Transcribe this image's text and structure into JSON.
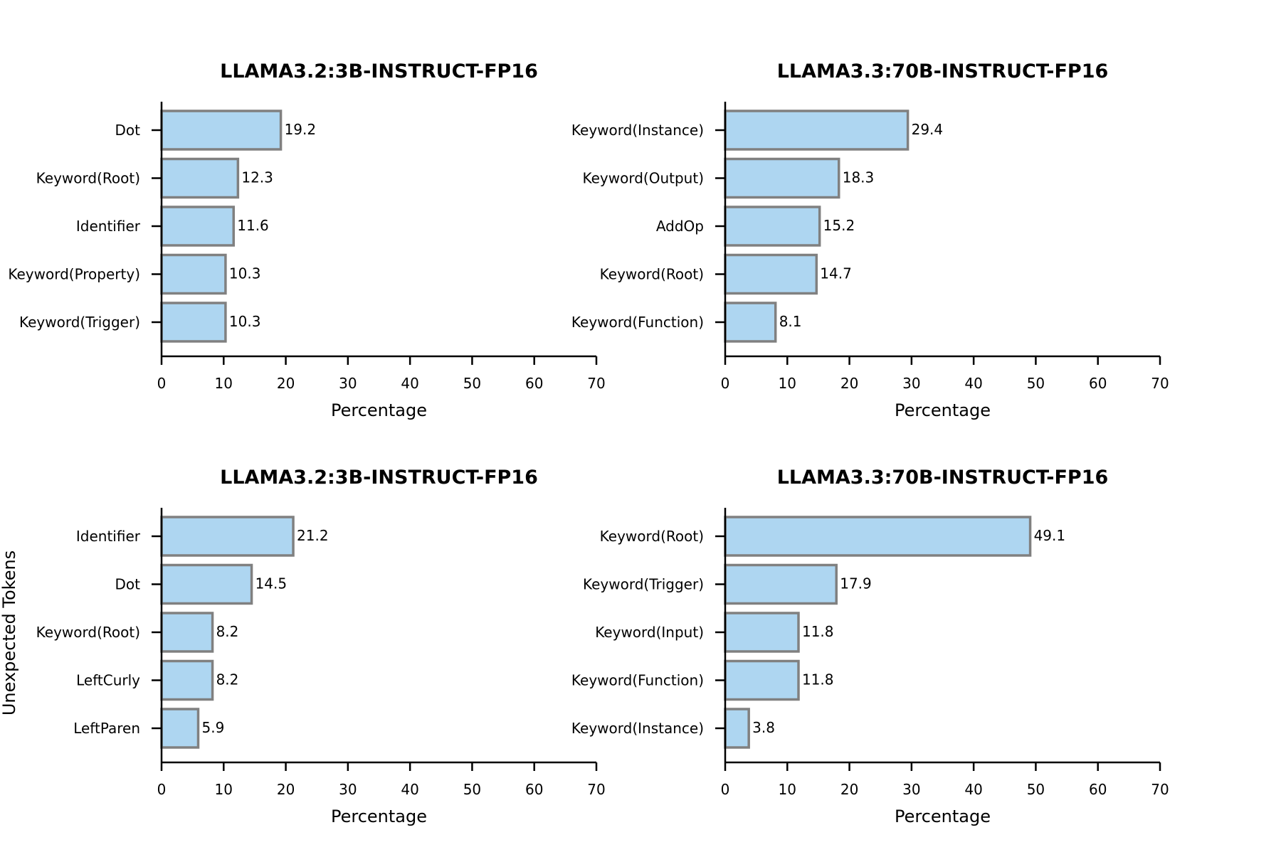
{
  "figure": {
    "shared_ylabel": "Unexpected Tokens",
    "bar_fill": "#aed6f1",
    "bar_edge": "#808080"
  },
  "chart_data": [
    {
      "type": "bar",
      "orientation": "horizontal",
      "title": "LLAMA3.2:3B-INSTRUCT-FP16",
      "xlabel": "Percentage",
      "ylabel": "",
      "xlim": [
        0,
        70
      ],
      "xticks": [
        0,
        10,
        20,
        30,
        40,
        50,
        60,
        70
      ],
      "categories": [
        "Dot",
        "Keyword(Root)",
        "Identifier",
        "Keyword(Property)",
        "Keyword(Trigger)"
      ],
      "values": [
        19.2,
        12.3,
        11.6,
        10.3,
        10.3
      ],
      "value_labels": [
        "19.2",
        "12.3",
        "11.6",
        "10.3",
        "10.3"
      ],
      "grid": false
    },
    {
      "type": "bar",
      "orientation": "horizontal",
      "title": "LLAMA3.3:70B-INSTRUCT-FP16",
      "xlabel": "Percentage",
      "ylabel": "",
      "xlim": [
        0,
        70
      ],
      "xticks": [
        0,
        10,
        20,
        30,
        40,
        50,
        60,
        70
      ],
      "categories": [
        "Keyword(Instance)",
        "Keyword(Output)",
        "AddOp",
        "Keyword(Root)",
        "Keyword(Function)"
      ],
      "values": [
        29.4,
        18.3,
        15.2,
        14.7,
        8.1
      ],
      "value_labels": [
        "29.4",
        "18.3",
        "15.2",
        "14.7",
        "8.1"
      ],
      "grid": false
    },
    {
      "type": "bar",
      "orientation": "horizontal",
      "title": "LLAMA3.2:3B-INSTRUCT-FP16",
      "xlabel": "Percentage",
      "ylabel": "Unexpected Tokens",
      "xlim": [
        0,
        70
      ],
      "xticks": [
        0,
        10,
        20,
        30,
        40,
        50,
        60,
        70
      ],
      "categories": [
        "Identifier",
        "Dot",
        "Keyword(Root)",
        "LeftCurly",
        "LeftParen"
      ],
      "values": [
        21.2,
        14.5,
        8.2,
        8.2,
        5.9
      ],
      "value_labels": [
        "21.2",
        "14.5",
        "8.2",
        "8.2",
        "5.9"
      ],
      "grid": false
    },
    {
      "type": "bar",
      "orientation": "horizontal",
      "title": "LLAMA3.3:70B-INSTRUCT-FP16",
      "xlabel": "Percentage",
      "ylabel": "",
      "xlim": [
        0,
        70
      ],
      "xticks": [
        0,
        10,
        20,
        30,
        40,
        50,
        60,
        70
      ],
      "categories": [
        "Keyword(Root)",
        "Keyword(Trigger)",
        "Keyword(Input)",
        "Keyword(Function)",
        "Keyword(Instance)"
      ],
      "values": [
        49.1,
        17.9,
        11.8,
        11.8,
        3.8
      ],
      "value_labels": [
        "49.1",
        "17.9",
        "11.8",
        "11.8",
        "3.8"
      ],
      "grid": false
    }
  ]
}
